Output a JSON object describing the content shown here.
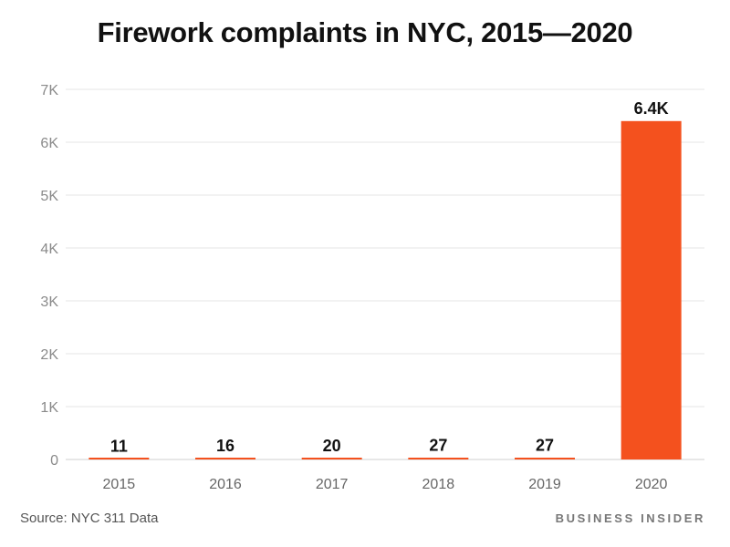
{
  "chart_data": {
    "type": "bar",
    "title": "Firework complaints in NYC, 2015—2020",
    "categories": [
      "2015",
      "2016",
      "2017",
      "2018",
      "2019",
      "2020"
    ],
    "values": [
      11,
      16,
      20,
      27,
      27,
      6400
    ],
    "data_labels": [
      "11",
      "16",
      "20",
      "27",
      "27",
      "6.4K"
    ],
    "ylim": [
      0,
      7000
    ],
    "yticks": [
      0,
      1000,
      2000,
      3000,
      4000,
      5000,
      6000,
      7000
    ],
    "ytick_labels": [
      "0",
      "1K",
      "2K",
      "3K",
      "4K",
      "5K",
      "6K",
      "7K"
    ],
    "xlabel": "",
    "ylabel": "",
    "grid": true,
    "bar_color": "#f4511e"
  },
  "footer": {
    "source_label": "Source:",
    "source_text": "NYC 311 Data",
    "brand": "BUSINESS INSIDER"
  }
}
